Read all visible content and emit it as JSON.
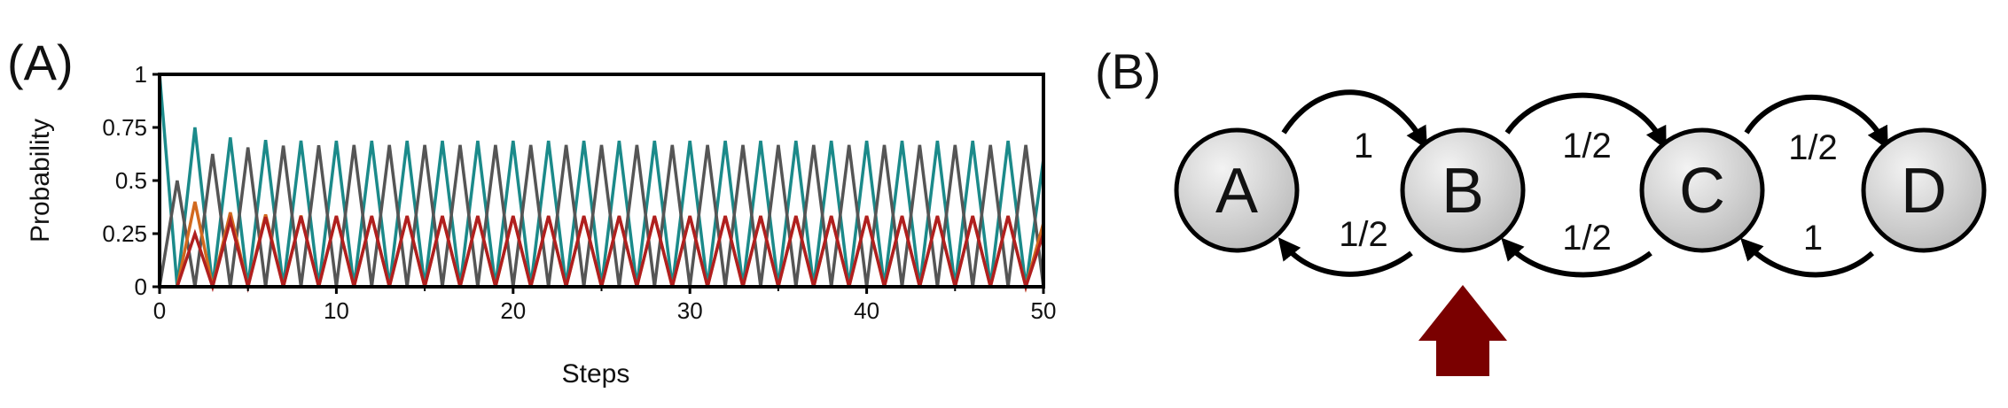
{
  "panel_a": {
    "label": "(A)"
  },
  "panel_b": {
    "label": "(B)"
  },
  "chart_data": {
    "type": "line",
    "title": "",
    "xlabel": "Steps",
    "ylabel": "Probability",
    "xlim": [
      0,
      50
    ],
    "ylim": [
      0,
      1
    ],
    "x_ticks": [
      0,
      10,
      20,
      30,
      40,
      50
    ],
    "y_ticks": [
      0,
      0.25,
      0.5,
      0.75,
      1
    ],
    "y_tick_labels": [
      "0",
      "0.25",
      "0.5",
      "0.75",
      "1"
    ],
    "grid": false,
    "legend": "none",
    "x": [
      0,
      1,
      2,
      3,
      4,
      5,
      6,
      7,
      8,
      9,
      10,
      11,
      12,
      13,
      14,
      15,
      16,
      17,
      18,
      19,
      20,
      21,
      22,
      23,
      24,
      25,
      26,
      27,
      28,
      29,
      30,
      31,
      32,
      33,
      34,
      35,
      36,
      37,
      38,
      39,
      40,
      41,
      42,
      43,
      44,
      45,
      46,
      47,
      48,
      49,
      50
    ],
    "series": [
      {
        "color": "#1b8a8a",
        "values": [
          1,
          0,
          0.75,
          0,
          0.703,
          0,
          0.691,
          0,
          0.688,
          0,
          0.687,
          0,
          0.687,
          0,
          0.687,
          0,
          0.687,
          0,
          0.687,
          0,
          0.687,
          0,
          0.687,
          0,
          0.687,
          0,
          0.687,
          0,
          0.687,
          0,
          0.687,
          0,
          0.687,
          0,
          0.687,
          0,
          0.687,
          0,
          0.687,
          0,
          0.687,
          0,
          0.687,
          0,
          0.687,
          0,
          0.687,
          0,
          0.687,
          0,
          0.6
        ]
      },
      {
        "color": "#555555",
        "values": [
          0,
          0.5,
          0,
          0.625,
          0,
          0.656,
          0,
          0.664,
          0,
          0.666,
          0,
          0.667,
          0,
          0.667,
          0,
          0.667,
          0,
          0.667,
          0,
          0.667,
          0,
          0.667,
          0,
          0.667,
          0,
          0.667,
          0,
          0.667,
          0,
          0.667,
          0,
          0.667,
          0,
          0.667,
          0,
          0.667,
          0,
          0.667,
          0,
          0.667,
          0,
          0.667,
          0,
          0.667,
          0,
          0.667,
          0,
          0.667,
          0,
          0.667,
          0
        ]
      },
      {
        "color": "#d2691e",
        "values": [
          0,
          0,
          0.4,
          0,
          0.35,
          0,
          0.34,
          0,
          0.335,
          0,
          0.333,
          0,
          0.333,
          0,
          0.333,
          0,
          0.333,
          0,
          0.333,
          0,
          0.333,
          0,
          0.333,
          0,
          0.333,
          0,
          0.333,
          0,
          0.333,
          0,
          0.333,
          0,
          0.333,
          0,
          0.333,
          0,
          0.333,
          0,
          0.333,
          0,
          0.333,
          0,
          0.333,
          0,
          0.333,
          0,
          0.333,
          0,
          0.333,
          0,
          0.3
        ]
      },
      {
        "color": "#b01f1f",
        "values": [
          0,
          0,
          0.25,
          0,
          0.313,
          0,
          0.328,
          0,
          0.332,
          0,
          0.333,
          0,
          0.333,
          0,
          0.333,
          0,
          0.333,
          0,
          0.333,
          0,
          0.333,
          0,
          0.333,
          0,
          0.333,
          0,
          0.333,
          0,
          0.333,
          0,
          0.333,
          0,
          0.333,
          0,
          0.333,
          0,
          0.333,
          0,
          0.333,
          0,
          0.333,
          0,
          0.333,
          0,
          0.333,
          0,
          0.333,
          0,
          0.333,
          0,
          0.25
        ]
      }
    ]
  },
  "diagram": {
    "nodes": [
      {
        "id": "A",
        "label": "A"
      },
      {
        "id": "B",
        "label": "B"
      },
      {
        "id": "C",
        "label": "C"
      },
      {
        "id": "D",
        "label": "D"
      }
    ],
    "edges": [
      {
        "from": "A",
        "to": "B",
        "label": "1"
      },
      {
        "from": "B",
        "to": "A",
        "label": "1/2"
      },
      {
        "from": "B",
        "to": "C",
        "label": "1/2"
      },
      {
        "from": "C",
        "to": "B",
        "label": "1/2"
      },
      {
        "from": "C",
        "to": "D",
        "label": "1/2"
      },
      {
        "from": "D",
        "to": "C",
        "label": "1"
      }
    ],
    "start_marker": {
      "node": "B",
      "color": "#7a0000"
    },
    "node_fill": "#d4d4d4"
  }
}
